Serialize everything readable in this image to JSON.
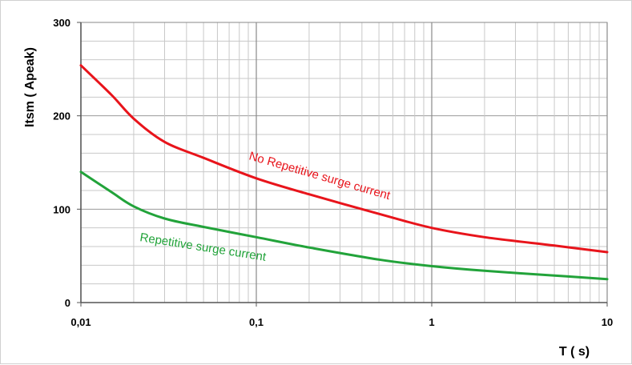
{
  "chart_data": {
    "type": "line",
    "title": "",
    "xlabel": "T ( s)",
    "ylabel": "Itsm ( Apeak)",
    "x_scale": "log",
    "xlim": [
      0.01,
      10
    ],
    "ylim": [
      0,
      300
    ],
    "grid": true,
    "x_tick_labels": [
      "0,01",
      "0,1",
      "1",
      "10"
    ],
    "x_tick_values": [
      0.01,
      0.1,
      1,
      10
    ],
    "y_tick_labels": [
      "0",
      "100",
      "200",
      "300"
    ],
    "y_tick_values": [
      0,
      100,
      200,
      300
    ],
    "series": [
      {
        "name": "No Repetitive surge current",
        "color": "#e8141b",
        "x": [
          0.01,
          0.015,
          0.02,
          0.03,
          0.05,
          0.1,
          0.2,
          0.5,
          1,
          2,
          5,
          10
        ],
        "y": [
          254,
          222,
          197,
          172,
          155,
          133,
          116,
          95,
          80,
          70,
          61,
          54
        ]
      },
      {
        "name": "Repetitive surge current",
        "color": "#22a33a",
        "x": [
          0.01,
          0.015,
          0.02,
          0.03,
          0.05,
          0.1,
          0.2,
          0.5,
          1,
          2,
          5,
          10
        ],
        "y": [
          140,
          118,
          103,
          90,
          81,
          70,
          59,
          46,
          39,
          34,
          29,
          25
        ]
      }
    ],
    "annotations": [
      {
        "text": "No Repetitive surge current",
        "color": "#e8141b"
      },
      {
        "text": "Repetitive surge current",
        "color": "#22a33a"
      }
    ]
  }
}
